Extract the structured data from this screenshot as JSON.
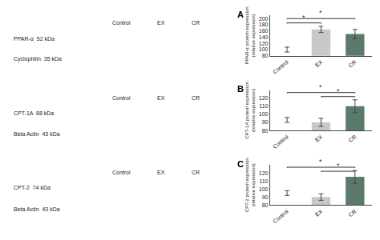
{
  "chart_data": [
    {
      "type": "bar",
      "title": "A",
      "ylabel": "PPAR-α protein expression\n(relative expression)",
      "categories": [
        "Control",
        "EX",
        "CR"
      ],
      "values": [
        100,
        165,
        150
      ],
      "errors": [
        8,
        10,
        15
      ],
      "colors": [
        "#ffffff",
        "#c8c8c8",
        "#5a7a6a"
      ],
      "ylim": [
        80,
        210
      ],
      "yticks": [
        80,
        100,
        120,
        140,
        160,
        180,
        200
      ],
      "grid": false,
      "annotations": [
        {
          "text": "*",
          "x1": 0,
          "x2": 1,
          "y": 186
        },
        {
          "text": "*",
          "x1": 0,
          "x2": 2,
          "y": 200
        }
      ],
      "blot": {
        "columns": [
          "Control",
          "EX",
          "CR"
        ],
        "rows": [
          "PPAR-α  52 kDa",
          "Cyclophilin  35 kDa"
        ]
      }
    },
    {
      "type": "bar",
      "title": "B",
      "ylabel": "CPT-1A protein expression\n(relative expression)",
      "categories": [
        "Control",
        "EX",
        "CR"
      ],
      "values": [
        93,
        90,
        110
      ],
      "errors": [
        3,
        5,
        8
      ],
      "colors": [
        "#ffffff",
        "#c8c8c8",
        "#5a7a6a"
      ],
      "ylim": [
        80,
        130
      ],
      "yticks": [
        80,
        90,
        100,
        110,
        120
      ],
      "grid": false,
      "annotations": [
        {
          "text": "*",
          "x1": 1,
          "x2": 2,
          "y": 122
        },
        {
          "text": "*",
          "x1": 0,
          "x2": 2,
          "y": 127
        }
      ],
      "blot": {
        "columns": [
          "Control",
          "EX",
          "CR"
        ],
        "rows": [
          "CPT-1A  88 kDa",
          "Beta Actin  43 kDa"
        ]
      }
    },
    {
      "type": "bar",
      "title": "C",
      "ylabel": "CPT-2 protein expression\n(relative expression)",
      "categories": [
        "Control",
        "EX",
        "CR"
      ],
      "values": [
        95,
        90,
        115
      ],
      "errors": [
        3,
        4,
        8
      ],
      "colors": [
        "#ffffff",
        "#c8c8c8",
        "#5a7a6a"
      ],
      "ylim": [
        80,
        130
      ],
      "yticks": [
        80,
        90,
        100,
        110,
        120
      ],
      "grid": false,
      "annotations": [
        {
          "text": "*",
          "x1": 1,
          "x2": 2,
          "y": 122
        },
        {
          "text": "*",
          "x1": 0,
          "x2": 2,
          "y": 127
        }
      ],
      "blot": {
        "columns": [
          "Control",
          "EX",
          "CR"
        ],
        "rows": [
          "CPT-2  74 kDa",
          "Beta Actin  43 kDa"
        ]
      }
    }
  ]
}
